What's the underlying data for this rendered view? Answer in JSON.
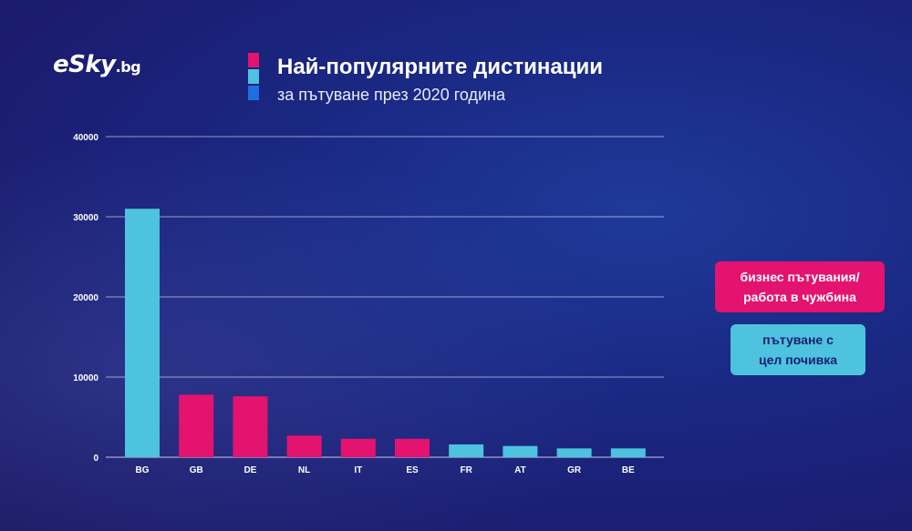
{
  "brand": {
    "logo_text": "eSky",
    "logo_tld": ".bg"
  },
  "header": {
    "title": "Най-популярните дистинации",
    "subtitle": "за пътуване през 2020 година"
  },
  "colors": {
    "business": "#e3136f",
    "leisure": "#4dc3df",
    "accent_blue": "#1f6fe0"
  },
  "legend": {
    "business_label_1": "бизнес пътувания/",
    "business_label_2": "работа в чужбина",
    "leisure_label_1": "пътуване с",
    "leisure_label_2": "цел почивка"
  },
  "chart_data": {
    "type": "bar",
    "categories": [
      "BG",
      "GB",
      "DE",
      "NL",
      "IT",
      "ES",
      "FR",
      "AT",
      "GR",
      "BE"
    ],
    "values": [
      31000,
      7800,
      7600,
      2700,
      2300,
      2300,
      1600,
      1400,
      1100,
      1100
    ],
    "purpose": [
      "leisure",
      "business",
      "business",
      "business",
      "business",
      "business",
      "leisure",
      "leisure",
      "leisure",
      "leisure"
    ],
    "title": "Най-популярните дистинации",
    "subtitle": "за пътуване през 2020 година",
    "xlabel": "",
    "ylabel": "",
    "ylim": [
      0,
      40000
    ],
    "yticks": [
      0,
      10000,
      20000,
      30000,
      40000
    ],
    "grid": true,
    "legend_position": "right"
  }
}
